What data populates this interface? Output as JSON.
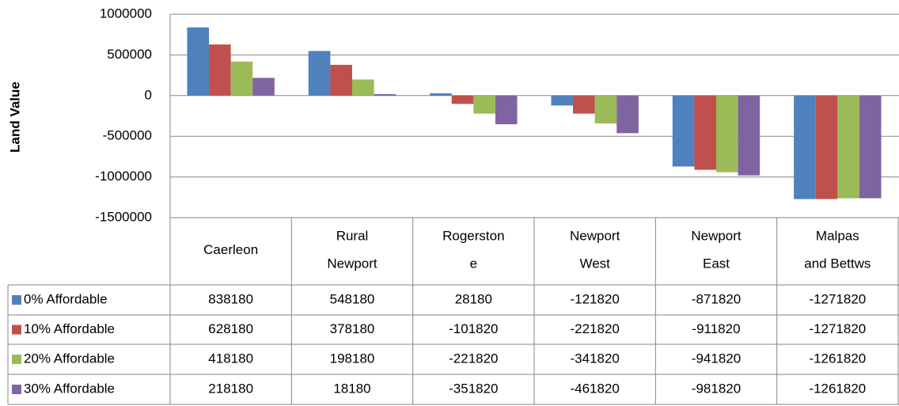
{
  "chart_data": {
    "type": "bar",
    "ylabel": "Land Value",
    "categories": [
      "Caerleon",
      "Rural Newport",
      "Rogerstone",
      "Newport West",
      "Newport East",
      "Malpas and Bettws"
    ],
    "series": [
      {
        "name": "0% Affordable",
        "color": "#4f81bd",
        "values": [
          838180,
          548180,
          28180,
          -121820,
          -871820,
          -1271820
        ]
      },
      {
        "name": "10% Affordable",
        "color": "#c0504d",
        "values": [
          628180,
          378180,
          -101820,
          -221820,
          -911820,
          -1271820
        ]
      },
      {
        "name": "20% Affordable",
        "color": "#9bbb59",
        "values": [
          418180,
          198180,
          -221820,
          -341820,
          -941820,
          -1261820
        ]
      },
      {
        "name": "30% Affordable",
        "color": "#8064a2",
        "values": [
          218180,
          18180,
          -351820,
          -461820,
          -981820,
          -1261820
        ]
      }
    ],
    "ylim": [
      -1500000,
      1000000
    ],
    "yticks": [
      -1500000,
      -1000000,
      -500000,
      0,
      500000,
      1000000
    ],
    "grid": true,
    "data_table": true
  }
}
